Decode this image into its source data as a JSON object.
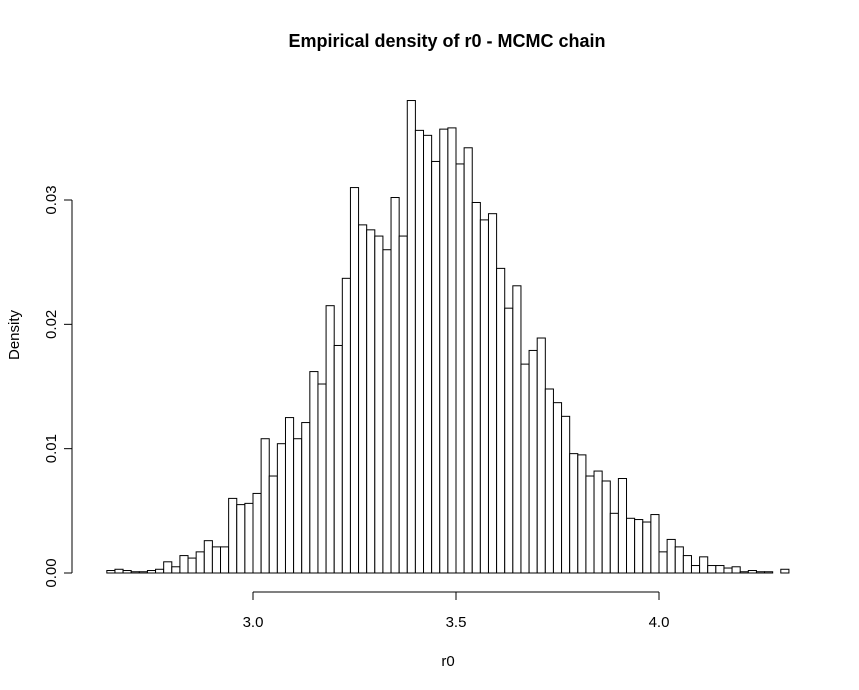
{
  "chart_data": {
    "type": "bar",
    "title": "Empirical density of r0 - MCMC chain",
    "xlabel": "r0",
    "ylabel": "Density",
    "x_ticks": [
      3.0,
      3.5,
      4.0
    ],
    "x_tick_labels": [
      "3.0",
      "3.5",
      "4.0"
    ],
    "y_ticks": [
      0.0,
      0.01,
      0.02,
      0.03
    ],
    "y_tick_labels": [
      "0.00",
      "0.01",
      "0.02",
      "0.03"
    ],
    "xlim": [
      2.65,
      4.33
    ],
    "ylim": [
      0.0,
      0.038
    ],
    "bin_start": 2.64,
    "bin_width": 0.02,
    "values": [
      0.0002,
      0.0003,
      0.0002,
      0.0001,
      0.0001,
      0.0002,
      0.0003,
      0.0009,
      0.0005,
      0.0014,
      0.0012,
      0.0017,
      0.0026,
      0.0021,
      0.0021,
      0.006,
      0.0055,
      0.0056,
      0.0064,
      0.0108,
      0.0078,
      0.0104,
      0.0125,
      0.0108,
      0.0121,
      0.0162,
      0.0152,
      0.0215,
      0.0183,
      0.0237,
      0.031,
      0.028,
      0.0276,
      0.0271,
      0.026,
      0.0302,
      0.0271,
      0.038,
      0.0356,
      0.0352,
      0.0331,
      0.0357,
      0.0358,
      0.0329,
      0.0342,
      0.0298,
      0.0284,
      0.0289,
      0.0245,
      0.0213,
      0.0231,
      0.0168,
      0.0179,
      0.0189,
      0.0148,
      0.0137,
      0.0126,
      0.0096,
      0.0095,
      0.0078,
      0.0082,
      0.0074,
      0.0048,
      0.0076,
      0.0044,
      0.0043,
      0.0041,
      0.0047,
      0.0017,
      0.0027,
      0.0021,
      0.0014,
      0.0006,
      0.0013,
      0.0006,
      0.0006,
      0.0004,
      0.0005,
      0.0001,
      0.0002,
      0.0001,
      0.0001,
      0.0,
      0.0003
    ],
    "grid": false,
    "bar_fill": "#ffffff",
    "bar_stroke": "#000000"
  }
}
